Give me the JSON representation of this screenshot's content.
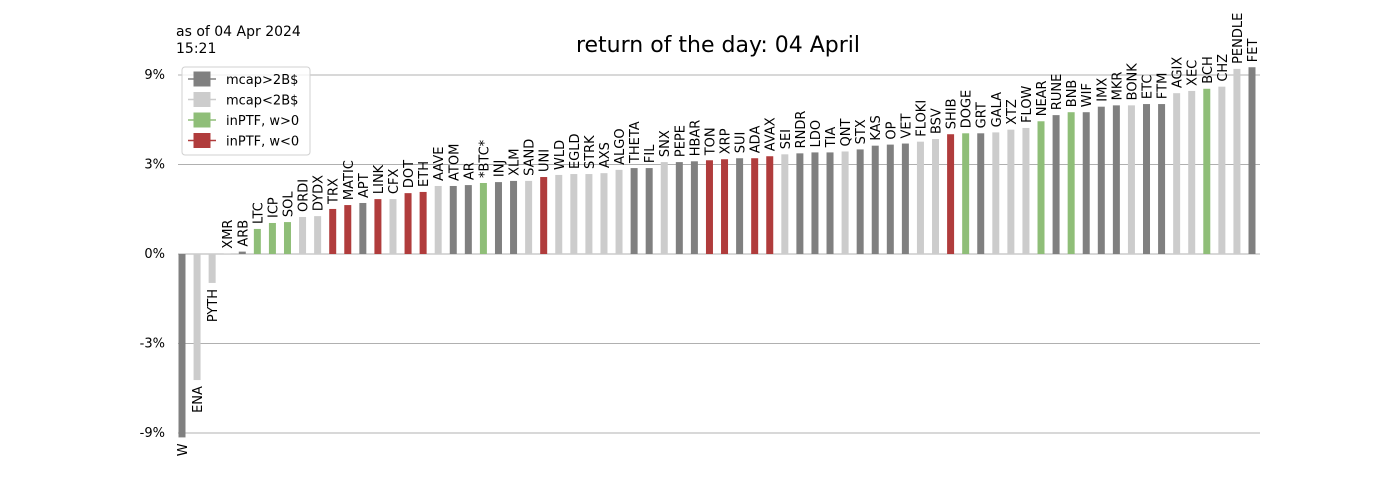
{
  "chart_data": {
    "type": "bar",
    "title": "return of the day: 04 April",
    "note_lines": [
      "as of 04 Apr 2024",
      "15:21"
    ],
    "yscale": "symlog",
    "linthresh": 3,
    "ylim": [
      -10,
      10.5
    ],
    "yticks": [
      {
        "value": -9,
        "label": "-9%"
      },
      {
        "value": -3,
        "label": "-3%"
      },
      {
        "value": 0,
        "label": "0%"
      },
      {
        "value": 3,
        "label": "3%"
      },
      {
        "value": 9,
        "label": "9%"
      }
    ],
    "grid": true,
    "legend_position": "upper left",
    "legend": [
      {
        "name": "mcap>2B$",
        "color": "#808080"
      },
      {
        "name": "mcap<2B$",
        "color": "#cccccc"
      },
      {
        "name": "inPTF, w>0",
        "color": "#8fbe78"
      },
      {
        "name": "inPTF, w<0",
        "color": "#b03c3c"
      }
    ],
    "categories": [
      "W",
      "ENA",
      "PYTH",
      "XMR",
      "ARB",
      "LTC",
      "ICP",
      "SOL",
      "ORDI",
      "DYDX",
      "TRX",
      "MATIC",
      "APT",
      "LINK",
      "CFX",
      "DOT",
      "ETH",
      "AAVE",
      "ATOM",
      "AR",
      "*BTC*",
      "INJ",
      "XLM",
      "SAND",
      "UNI",
      "WLD",
      "EGLD",
      "STRK",
      "AXS",
      "ALGO",
      "THETA",
      "FIL",
      "SNX",
      "PEPE",
      "HBAR",
      "TON",
      "XRP",
      "SUI",
      "ADA",
      "AVAX",
      "SEI",
      "RNDR",
      "LDO",
      "TIA",
      "QNT",
      "STX",
      "KAS",
      "OP",
      "VET",
      "FLOKI",
      "BSV",
      "SHIB",
      "DOGE",
      "GRT",
      "GALA",
      "XTZ",
      "FLOW",
      "NEAR",
      "RUNE",
      "BNB",
      "WIF",
      "IMX",
      "MKR",
      "BONK",
      "ETC",
      "FTM",
      "AGIX",
      "XEC",
      "BCH",
      "CHZ",
      "PENDLE",
      "FET"
    ],
    "values": [
      -9.5,
      -4.7,
      -0.97,
      0.01,
      0.08,
      0.84,
      1.04,
      1.07,
      1.24,
      1.27,
      1.51,
      1.64,
      1.71,
      1.84,
      1.84,
      2.04,
      2.08,
      2.28,
      2.28,
      2.31,
      2.38,
      2.41,
      2.45,
      2.45,
      2.58,
      2.65,
      2.68,
      2.68,
      2.71,
      2.82,
      2.88,
      2.88,
      3.09,
      3.09,
      3.12,
      3.16,
      3.2,
      3.24,
      3.24,
      3.32,
      3.4,
      3.44,
      3.48,
      3.48,
      3.52,
      3.61,
      3.78,
      3.83,
      3.88,
      3.97,
      4.1,
      4.35,
      4.4,
      4.4,
      4.45,
      4.6,
      4.7,
      5.1,
      5.5,
      5.7,
      5.7,
      6.1,
      6.2,
      6.2,
      6.3,
      6.3,
      7.2,
      7.4,
      7.6,
      7.8,
      9.7,
      9.9
    ],
    "colors": [
      "#808080",
      "#cccccc",
      "#cccccc",
      "#cccccc",
      "#808080",
      "#8fbe78",
      "#8fbe78",
      "#8fbe78",
      "#cccccc",
      "#cccccc",
      "#b03c3c",
      "#b03c3c",
      "#808080",
      "#b03c3c",
      "#cccccc",
      "#b03c3c",
      "#b03c3c",
      "#cccccc",
      "#808080",
      "#808080",
      "#8fbe78",
      "#808080",
      "#808080",
      "#cccccc",
      "#b03c3c",
      "#cccccc",
      "#cccccc",
      "#cccccc",
      "#cccccc",
      "#cccccc",
      "#808080",
      "#808080",
      "#cccccc",
      "#808080",
      "#808080",
      "#b03c3c",
      "#b03c3c",
      "#808080",
      "#b03c3c",
      "#b03c3c",
      "#cccccc",
      "#808080",
      "#808080",
      "#808080",
      "#cccccc",
      "#808080",
      "#808080",
      "#808080",
      "#808080",
      "#cccccc",
      "#cccccc",
      "#b03c3c",
      "#8fbe78",
      "#808080",
      "#cccccc",
      "#cccccc",
      "#cccccc",
      "#8fbe78",
      "#808080",
      "#8fbe78",
      "#808080",
      "#808080",
      "#808080",
      "#cccccc",
      "#808080",
      "#808080",
      "#cccccc",
      "#cccccc",
      "#8fbe78",
      "#cccccc",
      "#cccccc",
      "#808080"
    ]
  }
}
